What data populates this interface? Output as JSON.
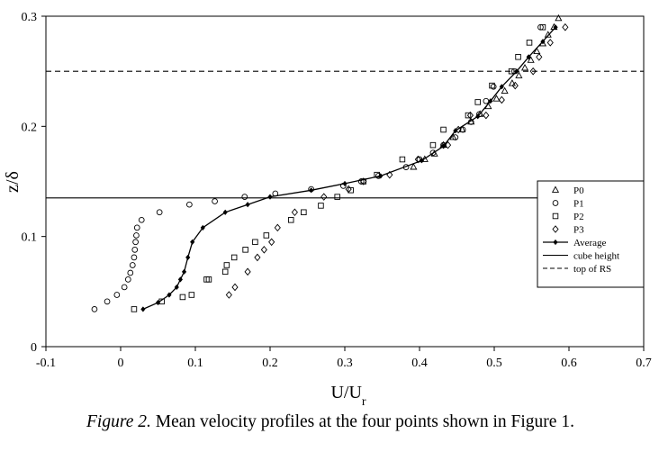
{
  "chart_data": {
    "type": "scatter",
    "xlabel": "U/U",
    "xlabel_sub": "r",
    "ylabel": "z/δ",
    "xlim": [
      -0.1,
      0.7
    ],
    "ylim": [
      0,
      0.3
    ],
    "xticks": [
      "-0.1",
      "0",
      "0.1",
      "0.2",
      "0.3",
      "0.4",
      "0.5",
      "0.6",
      "0.7"
    ],
    "yticks": [
      "0",
      "0.1",
      "0.2",
      "0.3"
    ],
    "legend_position": "right",
    "series": [
      {
        "name": "P0",
        "marker": "triangle",
        "points": [
          [
            0.392,
            0.163
          ],
          [
            0.407,
            0.17
          ],
          [
            0.42,
            0.175
          ],
          [
            0.432,
            0.183
          ],
          [
            0.445,
            0.19
          ],
          [
            0.457,
            0.197
          ],
          [
            0.469,
            0.204
          ],
          [
            0.481,
            0.211
          ],
          [
            0.492,
            0.218
          ],
          [
            0.503,
            0.225
          ],
          [
            0.514,
            0.232
          ],
          [
            0.524,
            0.239
          ],
          [
            0.533,
            0.246
          ],
          [
            0.541,
            0.253
          ],
          [
            0.549,
            0.26
          ],
          [
            0.557,
            0.268
          ],
          [
            0.565,
            0.275
          ],
          [
            0.572,
            0.283
          ],
          [
            0.58,
            0.29
          ],
          [
            0.586,
            0.298
          ]
        ]
      },
      {
        "name": "P1",
        "marker": "circle",
        "points": [
          [
            -0.035,
            0.034
          ],
          [
            -0.018,
            0.041
          ],
          [
            -0.005,
            0.047
          ],
          [
            0.005,
            0.054
          ],
          [
            0.01,
            0.061
          ],
          [
            0.013,
            0.067
          ],
          [
            0.016,
            0.074
          ],
          [
            0.018,
            0.081
          ],
          [
            0.019,
            0.088
          ],
          [
            0.02,
            0.095
          ],
          [
            0.021,
            0.101
          ],
          [
            0.022,
            0.108
          ],
          [
            0.028,
            0.115
          ],
          [
            0.052,
            0.122
          ],
          [
            0.092,
            0.129
          ],
          [
            0.126,
            0.132
          ],
          [
            0.166,
            0.136
          ],
          [
            0.207,
            0.139
          ],
          [
            0.255,
            0.143
          ],
          [
            0.298,
            0.146
          ],
          [
            0.322,
            0.15
          ],
          [
            0.345,
            0.155
          ],
          [
            0.382,
            0.163
          ],
          [
            0.4,
            0.17
          ],
          [
            0.418,
            0.176
          ],
          [
            0.432,
            0.183
          ],
          [
            0.448,
            0.19
          ],
          [
            0.458,
            0.197
          ],
          [
            0.469,
            0.204
          ],
          [
            0.48,
            0.211
          ],
          [
            0.489,
            0.223
          ],
          [
            0.499,
            0.236
          ],
          [
            0.527,
            0.25
          ],
          [
            0.562,
            0.29
          ]
        ]
      },
      {
        "name": "P2",
        "marker": "square",
        "points": [
          [
            0.018,
            0.034
          ],
          [
            0.055,
            0.041
          ],
          [
            0.083,
            0.045
          ],
          [
            0.095,
            0.047
          ],
          [
            0.115,
            0.061
          ],
          [
            0.118,
            0.061
          ],
          [
            0.14,
            0.068
          ],
          [
            0.142,
            0.074
          ],
          [
            0.152,
            0.081
          ],
          [
            0.167,
            0.088
          ],
          [
            0.18,
            0.095
          ],
          [
            0.195,
            0.101
          ],
          [
            0.228,
            0.115
          ],
          [
            0.245,
            0.122
          ],
          [
            0.268,
            0.128
          ],
          [
            0.29,
            0.136
          ],
          [
            0.308,
            0.142
          ],
          [
            0.325,
            0.15
          ],
          [
            0.343,
            0.156
          ],
          [
            0.377,
            0.17
          ],
          [
            0.418,
            0.183
          ],
          [
            0.432,
            0.197
          ],
          [
            0.465,
            0.21
          ],
          [
            0.478,
            0.222
          ],
          [
            0.497,
            0.237
          ],
          [
            0.523,
            0.25
          ],
          [
            0.532,
            0.263
          ],
          [
            0.547,
            0.276
          ],
          [
            0.565,
            0.29
          ]
        ]
      },
      {
        "name": "P3",
        "marker": "diamond",
        "points": [
          [
            0.145,
            0.047
          ],
          [
            0.153,
            0.054
          ],
          [
            0.17,
            0.068
          ],
          [
            0.183,
            0.081
          ],
          [
            0.192,
            0.088
          ],
          [
            0.202,
            0.095
          ],
          [
            0.21,
            0.108
          ],
          [
            0.233,
            0.122
          ],
          [
            0.272,
            0.136
          ],
          [
            0.305,
            0.143
          ],
          [
            0.325,
            0.15
          ],
          [
            0.36,
            0.156
          ],
          [
            0.398,
            0.17
          ],
          [
            0.438,
            0.183
          ],
          [
            0.452,
            0.197
          ],
          [
            0.468,
            0.21
          ],
          [
            0.489,
            0.21
          ],
          [
            0.51,
            0.224
          ],
          [
            0.528,
            0.237
          ],
          [
            0.552,
            0.25
          ],
          [
            0.56,
            0.263
          ],
          [
            0.575,
            0.276
          ],
          [
            0.595,
            0.29
          ]
        ]
      },
      {
        "name": "Average",
        "marker": "line-dot",
        "points": [
          [
            0.03,
            0.034
          ],
          [
            0.05,
            0.04
          ],
          [
            0.065,
            0.047
          ],
          [
            0.075,
            0.054
          ],
          [
            0.08,
            0.061
          ],
          [
            0.085,
            0.068
          ],
          [
            0.09,
            0.081
          ],
          [
            0.096,
            0.095
          ],
          [
            0.11,
            0.108
          ],
          [
            0.14,
            0.122
          ],
          [
            0.17,
            0.129
          ],
          [
            0.2,
            0.136
          ],
          [
            0.255,
            0.142
          ],
          [
            0.3,
            0.148
          ],
          [
            0.348,
            0.155
          ],
          [
            0.403,
            0.169
          ],
          [
            0.432,
            0.182
          ],
          [
            0.448,
            0.196
          ],
          [
            0.478,
            0.209
          ],
          [
            0.495,
            0.223
          ],
          [
            0.51,
            0.236
          ],
          [
            0.53,
            0.25
          ],
          [
            0.546,
            0.263
          ],
          [
            0.565,
            0.277
          ],
          [
            0.582,
            0.29
          ]
        ]
      }
    ],
    "reference_lines": [
      {
        "name": "cube height",
        "style": "solid",
        "y": 0.135
      },
      {
        "name": "top of RS",
        "style": "dashed",
        "y": 0.25
      }
    ]
  },
  "caption": {
    "lead": "Figure 2.",
    "text": " Mean velocity profiles at the four points shown in Figure 1."
  }
}
